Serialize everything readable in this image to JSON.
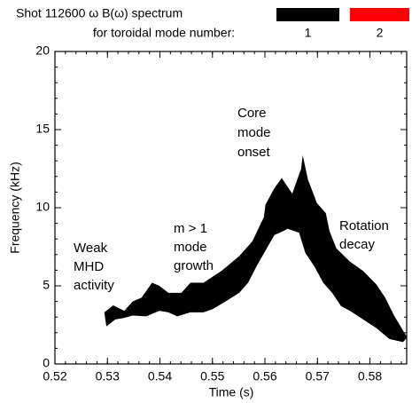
{
  "chart_data": {
    "type": "polygon",
    "title": "Shot 112600   ω B(ω) spectrum",
    "subtitle": "for toroidal mode number:",
    "x_label": "Time (s)",
    "y_label": "Frequency (kHz)",
    "xlim": [
      0.52,
      0.587
    ],
    "ylim": [
      0,
      20
    ],
    "xticks": [
      0.52,
      0.53,
      0.54,
      0.55,
      0.56,
      0.57,
      0.58
    ],
    "yticks": [
      0,
      5,
      10,
      15,
      20
    ],
    "series": [
      {
        "name": "1",
        "color": "#000000",
        "x": [
          0.5294,
          0.5311,
          0.5332,
          0.5348,
          0.5365,
          0.5385,
          0.5399,
          0.5416,
          0.5441,
          0.5458,
          0.5483,
          0.5517,
          0.5551,
          0.5576,
          0.5598,
          0.5601,
          0.5618,
          0.5632,
          0.5652,
          0.5669,
          0.5672,
          0.5682,
          0.5699,
          0.5716,
          0.5723,
          0.5736,
          0.5762,
          0.5787,
          0.5812,
          0.5829,
          0.5846,
          0.5871,
          0.5863,
          0.5837,
          0.5812,
          0.5787,
          0.5762,
          0.5745,
          0.5728,
          0.5711,
          0.5694,
          0.5677,
          0.5665,
          0.5643,
          0.5635,
          0.5618,
          0.5601,
          0.5584,
          0.5568,
          0.5551,
          0.5525,
          0.55,
          0.5483,
          0.5458,
          0.5433,
          0.5416,
          0.5399,
          0.5374,
          0.5348,
          0.5332,
          0.5315,
          0.5298
        ],
        "values": [
          3.3,
          3.75,
          3.4,
          4.0,
          4.25,
          5.2,
          5.0,
          4.55,
          4.55,
          5.2,
          5.2,
          5.95,
          6.9,
          7.85,
          9.4,
          10.2,
          11.25,
          11.9,
          10.9,
          12.5,
          13.35,
          11.8,
          10.3,
          9.65,
          8.5,
          7.4,
          6.55,
          5.95,
          5.1,
          4.25,
          3.1,
          1.7,
          1.4,
          1.6,
          2.3,
          2.85,
          3.4,
          3.7,
          4.55,
          5.2,
          6.25,
          7.1,
          8.4,
          8.65,
          8.5,
          8.25,
          7.25,
          6.25,
          5.2,
          4.55,
          4.0,
          3.5,
          3.3,
          3.3,
          3.05,
          3.3,
          3.4,
          3.05,
          3.1,
          2.95,
          2.85,
          2.4
        ]
      },
      {
        "name": "2",
        "color": "#ff0000",
        "x": [],
        "values": []
      }
    ],
    "annotations": [
      {
        "lines": [
          "Weak",
          "MHD",
          "activity"
        ]
      },
      {
        "lines": [
          "m > 1",
          "mode",
          "growth"
        ]
      },
      {
        "lines": [
          "Core",
          "mode",
          "onset"
        ]
      },
      {
        "lines": [
          "Rotation",
          "decay"
        ]
      }
    ]
  }
}
